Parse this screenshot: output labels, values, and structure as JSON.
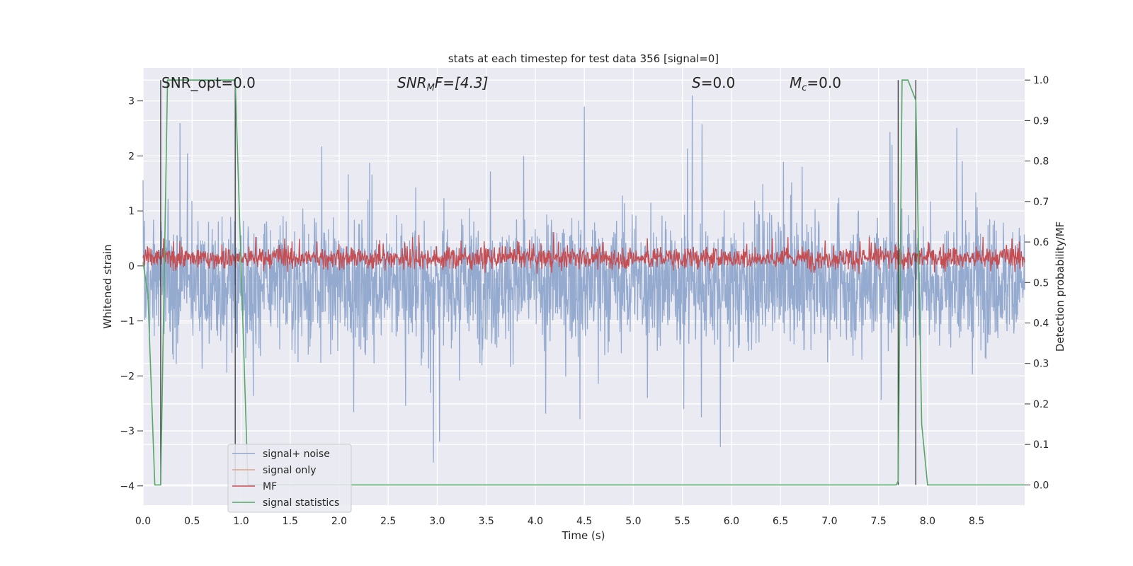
{
  "chart_data": {
    "type": "line",
    "title": "stats at each timestep for test data 356 [signal=0]",
    "xlabel": "Time (s)",
    "ylabel_left": "Whitened strain",
    "ylabel_right": "Detection probability/MF",
    "xlim": [
      0.0,
      8.99
    ],
    "ylim_left": [
      -4.35,
      3.6
    ],
    "ylim_right": [
      -0.05,
      1.03
    ],
    "x_ticks": [
      "0.0",
      "0.5",
      "1.0",
      "1.5",
      "2.0",
      "2.5",
      "3.0",
      "3.5",
      "4.0",
      "4.5",
      "5.0",
      "5.5",
      "6.0",
      "6.5",
      "7.0",
      "7.5",
      "8.0",
      "8.5"
    ],
    "y_left_ticks": [
      "3",
      "2",
      "1",
      "0",
      "−1",
      "−2",
      "−3",
      "−4"
    ],
    "y_right_ticks": [
      "1.0",
      "0.9",
      "0.8",
      "0.7",
      "0.6",
      "0.5",
      "0.4",
      "0.3",
      "0.2",
      "0.1",
      "0.0"
    ],
    "grid": true,
    "background": "#eaeaf2",
    "legend_position": "lower-left",
    "annotations": {
      "snr_opt": "SNR_opt=0.0",
      "snr_mf_base": "SNR",
      "snr_mf_sub": "M",
      "snr_mf_rest": "F=[4.3]",
      "s_italic": "S",
      "s_value": "=0.0",
      "mc_base": "M",
      "mc_sub": "c",
      "mc_value": "=0.0"
    },
    "series": [
      {
        "name": "signal+ noise",
        "color": "#8fa6cc",
        "axis": "left",
        "description_values": {
          "mean": -0.3,
          "std": 0.8,
          "min": -4.0,
          "max": 3.1
        }
      },
      {
        "name": "signal only",
        "color": "#e0a58c",
        "axis": "left",
        "values": [
          0.0
        ]
      },
      {
        "name": "MF",
        "color": "#c44e52",
        "axis": "right",
        "description_values": {
          "mean": 0.56,
          "std": 0.035,
          "max": 0.64,
          "min": 0.52
        }
      },
      {
        "name": "signal statistics",
        "color": "#55a868",
        "axis": "right",
        "x": [
          0.0,
          0.05,
          0.12,
          0.18,
          0.25,
          0.94,
          1.07,
          1.1,
          7.68,
          7.7,
          7.74,
          7.8,
          7.88,
          7.94,
          8.0,
          8.99
        ],
        "values": [
          0.55,
          0.47,
          0.0,
          0.0,
          1.0,
          1.0,
          0.0,
          0.0,
          0.0,
          0.01,
          1.0,
          1.0,
          0.95,
          0.15,
          0.0,
          0.0
        ]
      }
    ],
    "vertical_lines_x": [
      0.18,
      0.94,
      7.7,
      7.88
    ]
  }
}
